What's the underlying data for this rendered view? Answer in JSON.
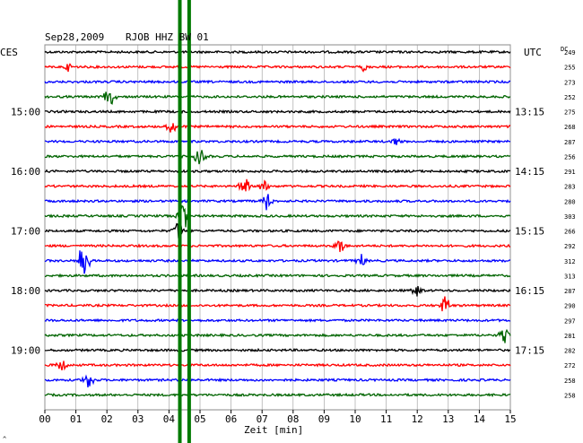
{
  "header": {
    "date": "Sep28,2009",
    "station": "RJOB HHZ BW 01",
    "left_tz": "CES",
    "right_tz": "UTC",
    "dc_label": "DC"
  },
  "footer": {
    "xlabel": "Zeit [min]",
    "corner_mark": "^"
  },
  "colors": {
    "trace_cycle": [
      "#000000",
      "#ff0000",
      "#0000ff",
      "#006400"
    ],
    "grid": "#999999",
    "marker": "#007a00"
  },
  "chart_data": {
    "type": "line",
    "title": "Sep28,2009  RJOB HHZ BW 01",
    "xlabel": "Zeit [min]",
    "xlim": [
      0,
      15
    ],
    "x_ticks": [
      "00",
      "01",
      "02",
      "03",
      "04",
      "05",
      "06",
      "07",
      "08",
      "09",
      "10",
      "11",
      "12",
      "13",
      "14",
      "15"
    ],
    "traces_per_hour": 4,
    "left_time_labels": [
      {
        "row": 4,
        "label": "15:00"
      },
      {
        "row": 8,
        "label": "16:00"
      },
      {
        "row": 12,
        "label": "17:00"
      },
      {
        "row": 16,
        "label": "18:00"
      },
      {
        "row": 20,
        "label": "19:00"
      }
    ],
    "right_time_labels": [
      {
        "row": 4,
        "label": "13:15"
      },
      {
        "row": 8,
        "label": "14:15"
      },
      {
        "row": 12,
        "label": "15:15"
      },
      {
        "row": 16,
        "label": "16:15"
      },
      {
        "row": 20,
        "label": "17:15"
      }
    ],
    "dc_values": [
      "249",
      "255",
      "273",
      "252",
      "275",
      "268",
      "287",
      "256",
      "291",
      "283",
      "280",
      "303",
      "266",
      "292",
      "312",
      "313",
      "287",
      "290",
      "297",
      "281",
      "282",
      "272",
      "258",
      "258"
    ],
    "events": [
      {
        "row": 1,
        "minute": 0.75,
        "amp": 0.6
      },
      {
        "row": 1,
        "minute": 10.3,
        "amp": 0.7
      },
      {
        "row": 3,
        "minute": 2.1,
        "amp": 1.6
      },
      {
        "row": 5,
        "minute": 4.1,
        "amp": 1.2
      },
      {
        "row": 6,
        "minute": 11.3,
        "amp": 0.7
      },
      {
        "row": 7,
        "minute": 5.0,
        "amp": 1.4
      },
      {
        "row": 9,
        "minute": 6.4,
        "amp": 1.8
      },
      {
        "row": 9,
        "minute": 7.1,
        "amp": 1.0
      },
      {
        "row": 10,
        "minute": 7.15,
        "amp": 1.6
      },
      {
        "row": 11,
        "minute": 4.45,
        "amp": 2.6
      },
      {
        "row": 12,
        "minute": 4.3,
        "amp": 1.4
      },
      {
        "row": 13,
        "minute": 9.5,
        "amp": 1.1
      },
      {
        "row": 14,
        "minute": 1.25,
        "amp": 3.5
      },
      {
        "row": 14,
        "minute": 10.2,
        "amp": 1.0
      },
      {
        "row": 16,
        "minute": 12.0,
        "amp": 0.9
      },
      {
        "row": 17,
        "minute": 12.9,
        "amp": 1.6
      },
      {
        "row": 19,
        "minute": 14.8,
        "amp": 1.2
      },
      {
        "row": 21,
        "minute": 0.55,
        "amp": 0.9
      },
      {
        "row": 22,
        "minute": 1.4,
        "amp": 1.2
      }
    ],
    "markers_minutes": [
      4.35,
      4.65
    ],
    "grid": true
  }
}
